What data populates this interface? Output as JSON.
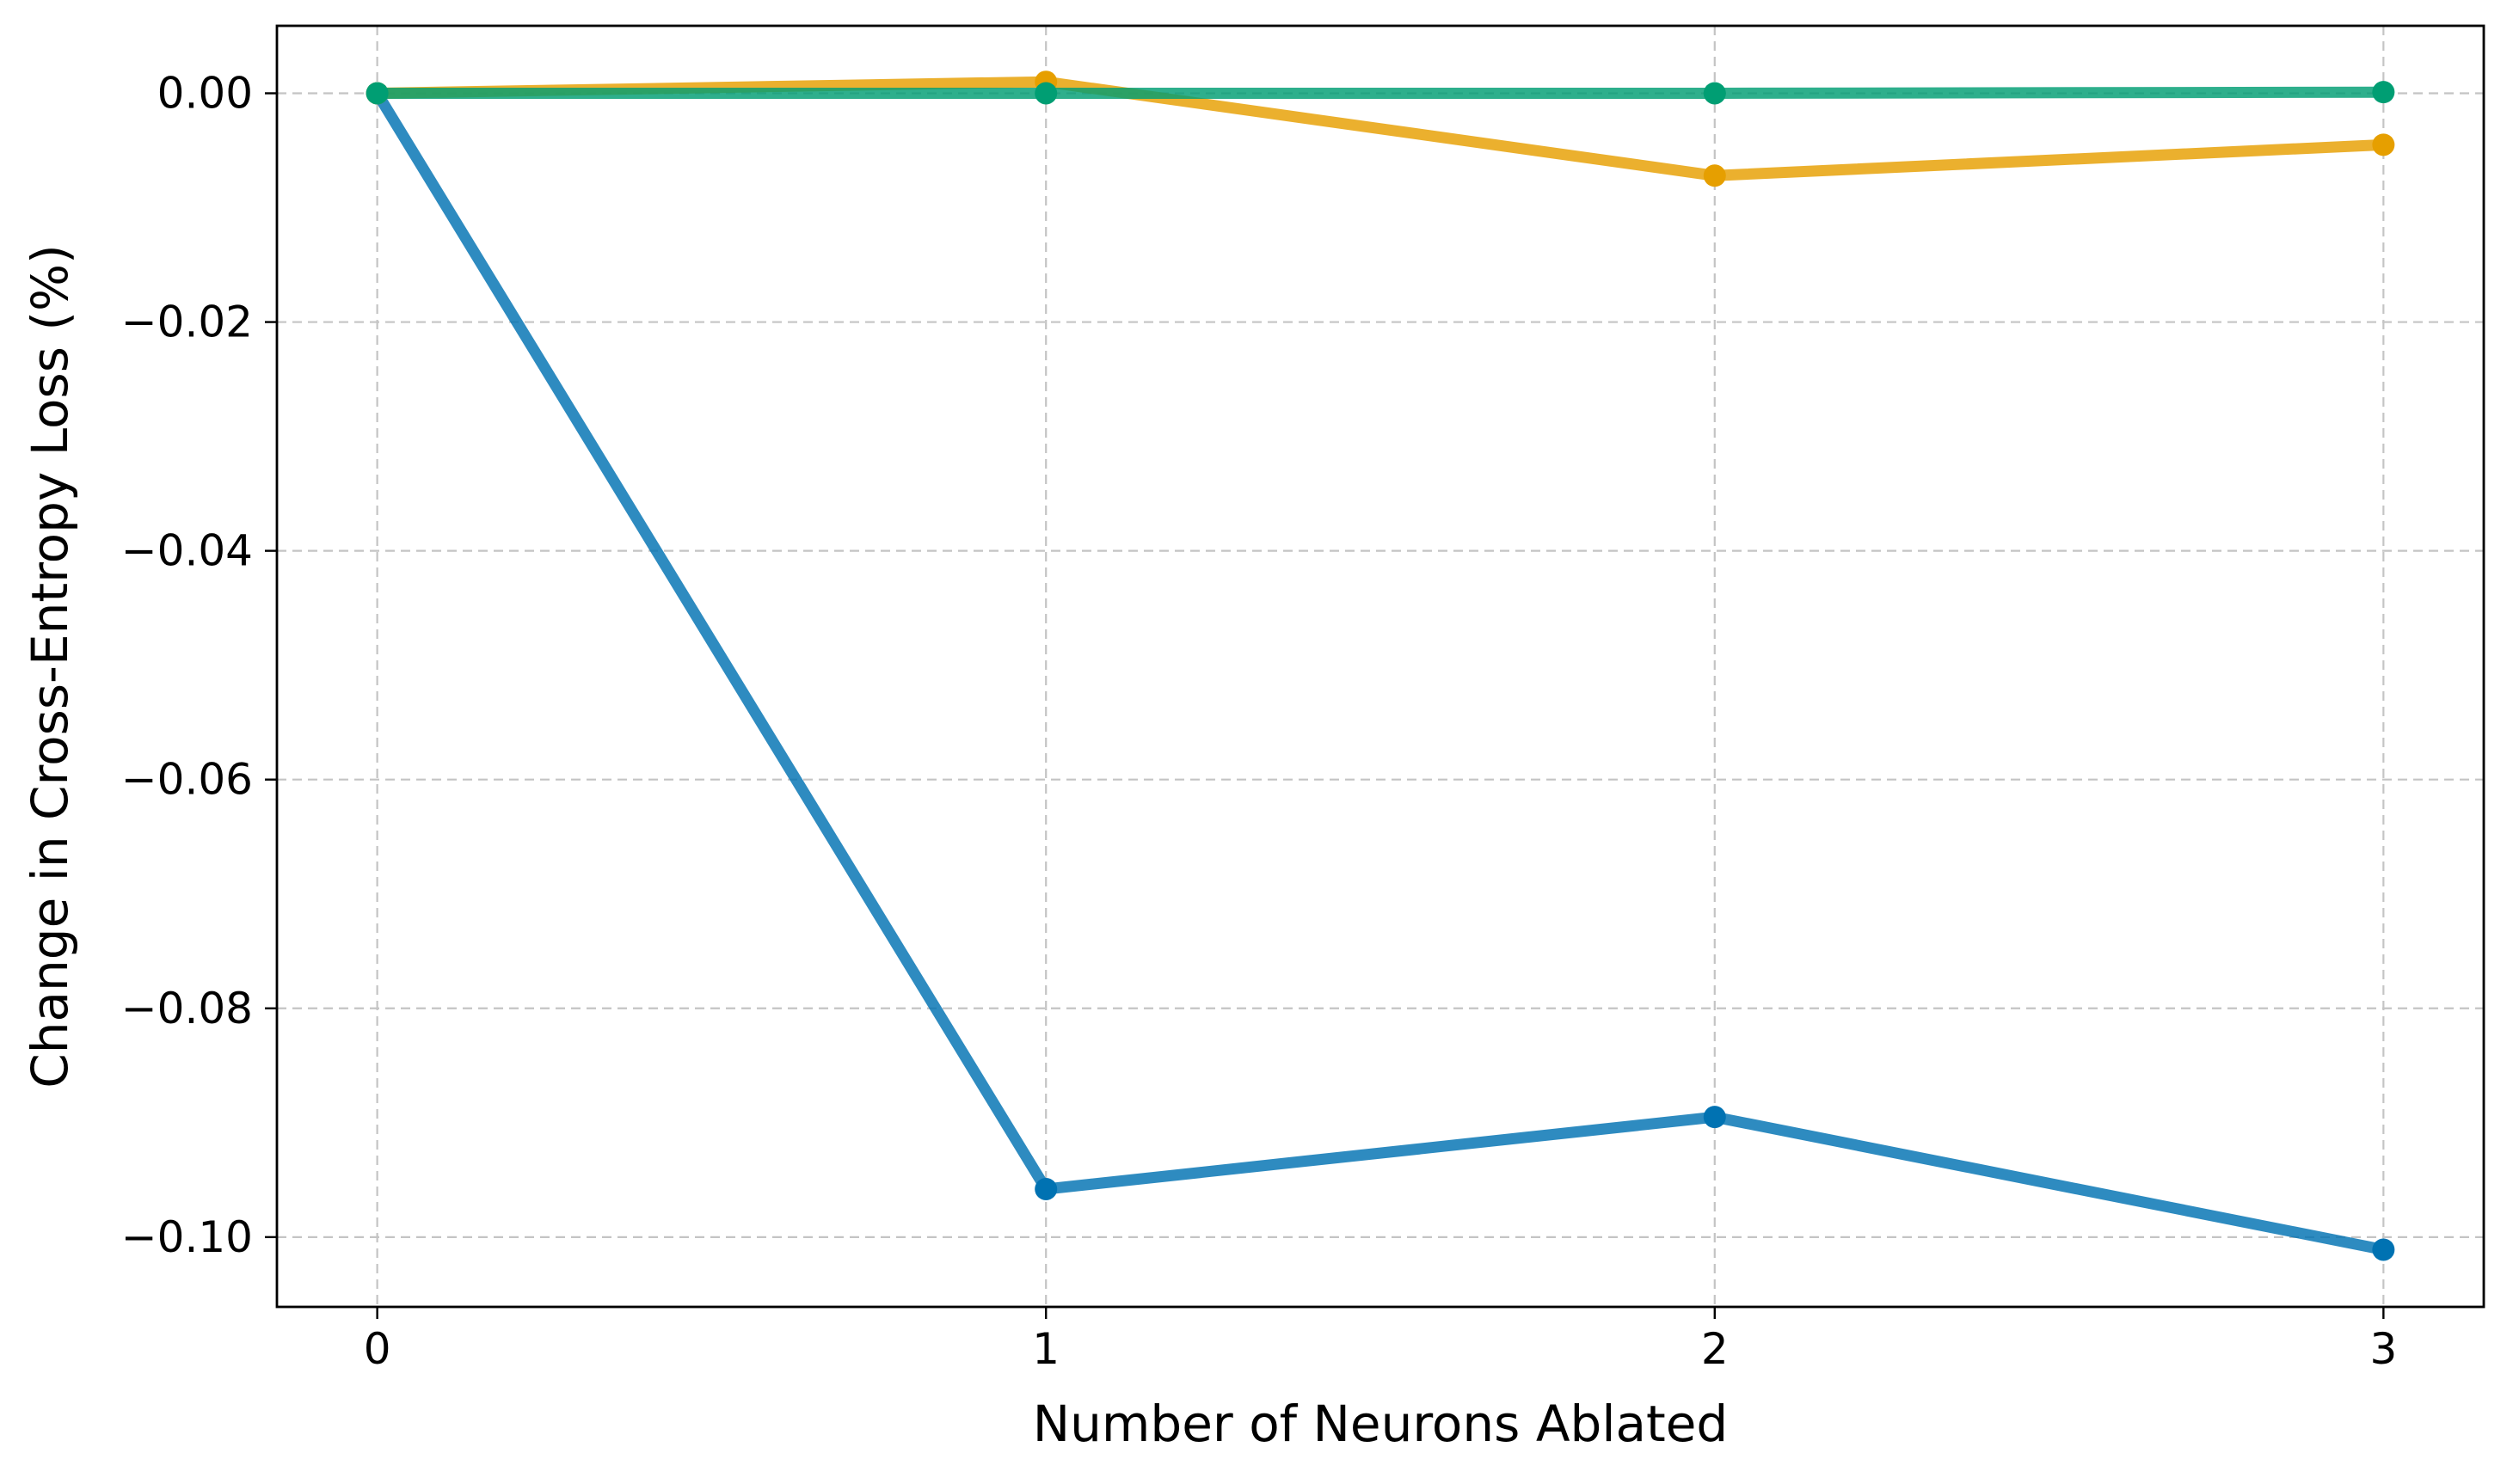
{
  "chart_data": {
    "type": "line",
    "title": "",
    "xlabel": "Number of Neurons Ablated",
    "ylabel": "Change in Cross-Entropy Loss (%)",
    "x": [
      0,
      1,
      2,
      3
    ],
    "x_ticks": [
      0,
      1,
      2,
      3
    ],
    "x_tick_labels": [
      "0",
      "1",
      "2",
      "3"
    ],
    "xlim": [
      -0.15,
      3.15
    ],
    "y_ticks": [
      0.0,
      -0.02,
      -0.04,
      -0.06,
      -0.08,
      -0.1
    ],
    "y_tick_labels": [
      "0.00",
      "−0.02",
      "−0.04",
      "−0.06",
      "−0.08",
      "−0.10"
    ],
    "ylim": [
      -0.1061,
      0.0059
    ],
    "grid": true,
    "legend": "none",
    "series": [
      {
        "color": "#0072B2",
        "values": [
          0.0,
          -0.0958,
          -0.0895,
          -0.1011
        ]
      },
      {
        "color": "#E69F00",
        "values": [
          0.0,
          0.001,
          -0.0072,
          -0.0045
        ]
      },
      {
        "color": "#009E73",
        "values": [
          0.0,
          0.0,
          0.0,
          0.0001
        ]
      }
    ]
  }
}
